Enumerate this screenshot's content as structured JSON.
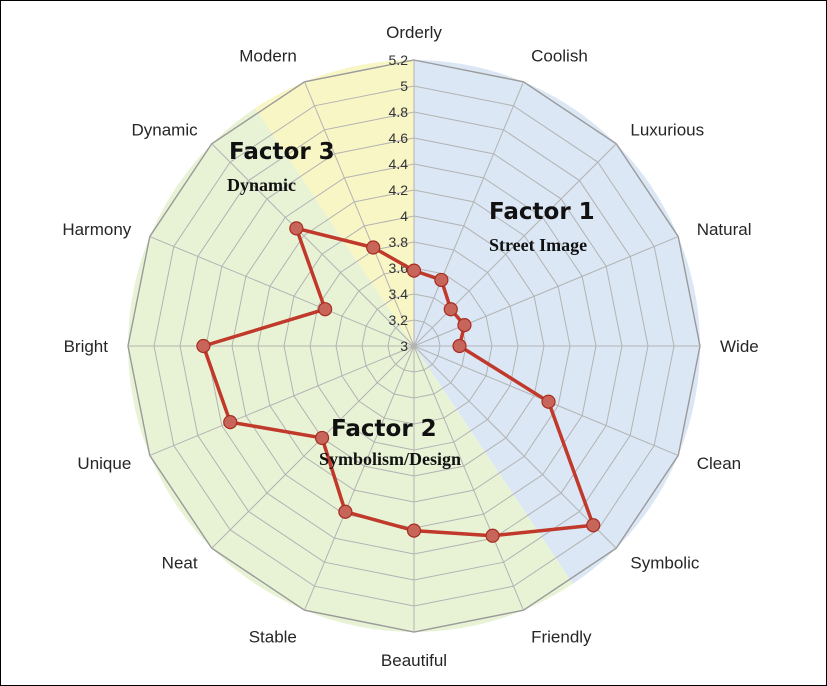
{
  "chart_data": {
    "type": "radar",
    "categories": [
      "Orderly",
      "Coolish",
      "Luxurious",
      "Natural",
      "Wide",
      "Clean",
      "Symbolic",
      "Friendly",
      "Beautiful",
      "Stable",
      "Neat",
      "Unique",
      "Bright",
      "Harmony",
      "Dynamic",
      "Modern"
    ],
    "series": [
      {
        "values": [
          3.58,
          3.55,
          3.4,
          3.42,
          3.35,
          4.12,
          4.95,
          4.58,
          4.42,
          4.38,
          4.0,
          4.53,
          4.62,
          3.74,
          4.28,
          3.82
        ],
        "color": "#c0392b"
      }
    ],
    "rlim": [
      3,
      5.2
    ],
    "ticks": [
      "3",
      "3.2",
      "3.4",
      "3.6",
      "3.8",
      "4",
      "4.2",
      "4.4",
      "4.6",
      "4.8",
      "5",
      "5.2"
    ],
    "grid": true,
    "regions": [
      {
        "title": "Factor 1",
        "subtitle": "Street Image",
        "color": "#dbe7f5"
      },
      {
        "title": "Factor 2",
        "subtitle": "Symbolism/Design",
        "color": "#e8f3d6"
      },
      {
        "title": "Factor 3",
        "subtitle": "Dynamic",
        "color": "#f9f6c6"
      }
    ]
  }
}
